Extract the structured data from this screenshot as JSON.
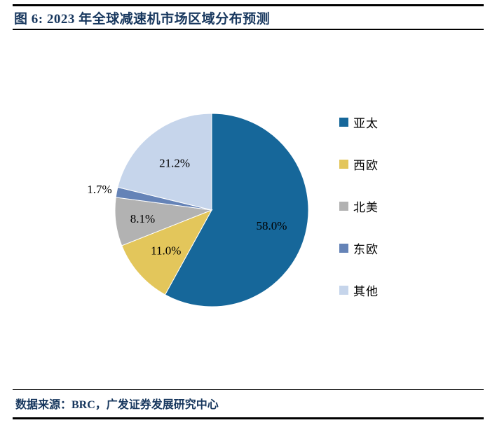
{
  "figure": {
    "title": "图 6: 2023 年全球减速机市场区域分布预测",
    "source": "数据来源：BRC，广发证券发展研究中心"
  },
  "colors": {
    "heading": "#17375E",
    "rule": "#000000",
    "data_label": "#000000"
  },
  "chart_data": {
    "type": "pie",
    "title": "2023 年全球减速机市场区域分布预测",
    "categories": [
      "亚太",
      "西欧",
      "北美",
      "东欧",
      "其他"
    ],
    "values": [
      58.0,
      11.0,
      8.1,
      1.7,
      21.2
    ],
    "labels": [
      "58.0%",
      "11.0%",
      "8.1%",
      "1.7%",
      "21.2%"
    ],
    "colors": [
      "#16679A",
      "#E3C65B",
      "#B2B2B2",
      "#6583B7",
      "#C6D5EB"
    ],
    "start_angle_deg": 0,
    "direction": "clockwise",
    "legend_position": "right",
    "label_radius_factors": [
      0.64,
      0.63,
      0.72,
      1.18,
      0.62
    ]
  }
}
